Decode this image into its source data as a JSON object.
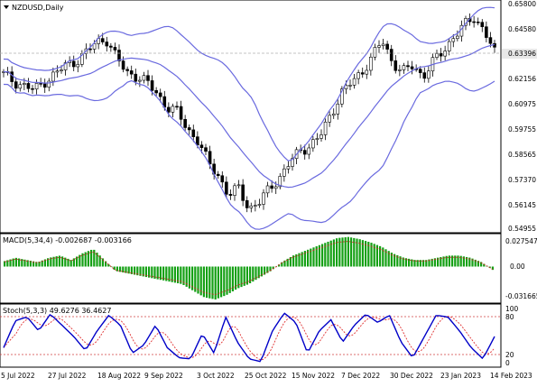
{
  "window": {
    "symbol_title": "NZDUSD,Daily",
    "current_price": "0.63396"
  },
  "colors": {
    "background": "#ffffff",
    "bollinger": "#6a6adf",
    "candle": "#000000",
    "macd_hist": "#14a014",
    "macd_signal": "#d02020",
    "stoch_main": "#0000c8",
    "stoch_signal": "#e03030",
    "level_line": "#d04040",
    "price_tag_bg": "#e8e8e8"
  },
  "price_panel": {
    "y_labels": [
      "0.65800",
      "0.64580",
      "0.63396",
      "0.62156",
      "0.60975",
      "0.59755",
      "0.58565",
      "0.57370",
      "0.56145",
      "0.54955"
    ]
  },
  "macd_panel": {
    "title": "MACD(5,34,4) -0.002687 -0.003166",
    "y_labels": [
      "0.027547",
      "0.00",
      "-0.031665"
    ]
  },
  "stoch_panel": {
    "title": "Stoch(5,3,3) 49.6276 36.4627",
    "y_labels": [
      "100",
      "80",
      "20",
      "0"
    ],
    "levels": [
      80,
      20
    ]
  },
  "x_axis": {
    "labels": [
      "5 Jul 2022",
      "27 Jul 2022",
      "18 Aug 2022",
      "9 Sep 2022",
      "3 Oct 2022",
      "25 Oct 2022",
      "15 Nov 2022",
      "7 Dec 2022",
      "30 Dec 2022",
      "23 Jan 2023",
      "14 Feb 2023"
    ]
  },
  "chart_data": {
    "type": "candlestick",
    "series": [
      {
        "name": "NZDUSD,Daily",
        "approx_close": [
          0.624,
          0.6205,
          0.6185,
          0.6165,
          0.6205,
          0.624,
          0.628,
          0.63,
          0.634,
          0.639,
          0.641,
          0.632,
          0.625,
          0.623,
          0.62,
          0.615,
          0.608,
          0.606,
          0.598,
          0.592,
          0.582,
          0.576,
          0.566,
          0.57,
          0.56,
          0.563,
          0.57,
          0.575,
          0.582,
          0.588,
          0.59,
          0.595,
          0.605,
          0.615,
          0.62,
          0.625,
          0.632,
          0.64,
          0.63,
          0.625,
          0.628,
          0.623,
          0.63,
          0.635,
          0.642,
          0.647,
          0.651,
          0.645,
          0.634
        ]
      }
    ],
    "macd_histogram": [
      0.005,
      0.008,
      0.006,
      0.004,
      0.008,
      0.01,
      0.006,
      0.012,
      0.016,
      0.006,
      -0.004,
      -0.006,
      -0.008,
      -0.01,
      -0.012,
      -0.014,
      -0.016,
      -0.022,
      -0.028,
      -0.03,
      -0.026,
      -0.02,
      -0.016,
      -0.01,
      -0.004,
      0.004,
      0.01,
      0.014,
      0.018,
      0.022,
      0.026,
      0.027,
      0.025,
      0.022,
      0.018,
      0.012,
      0.008,
      0.006,
      0.006,
      0.008,
      0.01,
      0.01,
      0.008,
      0.004,
      -0.003
    ],
    "stoch_main": [
      30,
      78,
      85,
      60,
      90,
      70,
      50,
      25,
      60,
      88,
      70,
      20,
      35,
      70,
      30,
      12,
      10,
      55,
      20,
      85,
      40,
      10,
      5,
      60,
      92,
      75,
      20,
      60,
      80,
      40,
      70,
      90,
      75,
      88,
      40,
      12,
      50,
      88,
      85,
      60,
      30,
      10,
      50
    ],
    "stoch_levels": [
      80,
      20
    ]
  }
}
